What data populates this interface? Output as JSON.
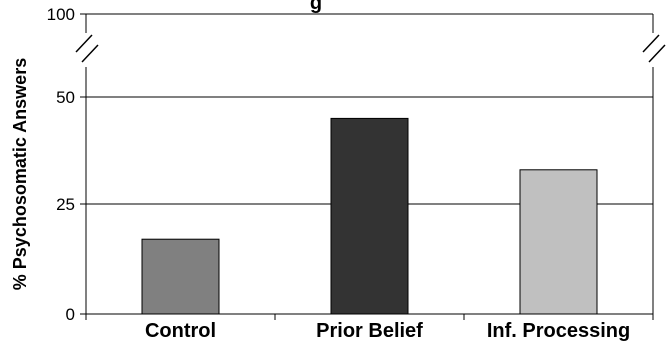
{
  "chart_data": {
    "type": "bar",
    "title": "g",
    "xlabel": "",
    "ylabel": "% Psychosomatic Answers",
    "categories": [
      "Control",
      "Prior Belief",
      "Inf. Processing"
    ],
    "values": [
      17,
      45,
      33
    ],
    "colors": [
      "#808080",
      "#333333",
      "#c0c0c0"
    ],
    "yticks": [
      "0",
      "25",
      "50",
      "100"
    ],
    "ylim": [
      0,
      100
    ],
    "axis_break": true,
    "grid": true,
    "legend": "none"
  }
}
